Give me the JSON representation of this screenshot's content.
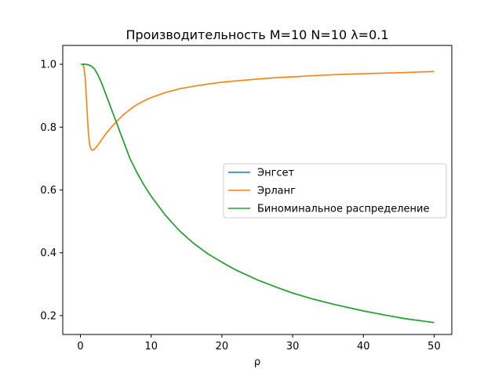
{
  "chart_data": {
    "type": "line",
    "title": "Производительность M=10 N=10 λ=0.1",
    "xlabel": "ρ",
    "ylabel": "",
    "xlim": [
      -2.5,
      52.5
    ],
    "ylim": [
      0.14,
      1.06
    ],
    "xticks": [
      0,
      10,
      20,
      30,
      40,
      50
    ],
    "yticks": [
      0.2,
      0.4,
      0.6,
      0.8,
      1.0
    ],
    "xtick_labels": [
      "0",
      "10",
      "20",
      "30",
      "40",
      "50"
    ],
    "ytick_labels": [
      "0.2",
      "0.4",
      "0.6",
      "0.8",
      "1.0"
    ],
    "grid": false,
    "legend_position": "center-right",
    "series": [
      {
        "name": "Энгсет",
        "color": "#1f77b4",
        "x": [
          0.1,
          0.5,
          1,
          1.5,
          2,
          2.5,
          3,
          3.5,
          4,
          4.5,
          5,
          6,
          7,
          8,
          9,
          10,
          12,
          14,
          16,
          18,
          20,
          22,
          25,
          28,
          30,
          33,
          36,
          40,
          43,
          46,
          50
        ],
        "y": [
          1.0,
          1.0,
          0.999,
          0.995,
          0.985,
          0.965,
          0.94,
          0.91,
          0.88,
          0.85,
          0.82,
          0.76,
          0.7,
          0.655,
          0.615,
          0.58,
          0.52,
          0.47,
          0.43,
          0.397,
          0.37,
          0.345,
          0.314,
          0.288,
          0.272,
          0.252,
          0.235,
          0.215,
          0.202,
          0.19,
          0.178
        ]
      },
      {
        "name": "Эрланг",
        "color": "#ff7f0e",
        "x": [
          0.1,
          0.3,
          0.5,
          0.7,
          0.9,
          1.1,
          1.3,
          1.5,
          1.7,
          1.9,
          2.2,
          2.6,
          3,
          3.5,
          4,
          4.5,
          5,
          6,
          7,
          8,
          9,
          10,
          12,
          14,
          16,
          18,
          20,
          22,
          25,
          28,
          30,
          33,
          36,
          40,
          43,
          46,
          50
        ],
        "y": [
          1.0,
          1.0,
          0.99,
          0.95,
          0.87,
          0.79,
          0.745,
          0.73,
          0.726,
          0.728,
          0.735,
          0.747,
          0.76,
          0.776,
          0.79,
          0.803,
          0.815,
          0.838,
          0.856,
          0.872,
          0.884,
          0.894,
          0.91,
          0.922,
          0.93,
          0.937,
          0.943,
          0.947,
          0.953,
          0.958,
          0.96,
          0.964,
          0.967,
          0.97,
          0.972,
          0.974,
          0.977
        ]
      },
      {
        "name": "Биноминальное распределение",
        "color": "#2ca02c",
        "x": [
          0.1,
          0.5,
          1,
          1.5,
          2,
          2.5,
          3,
          3.5,
          4,
          4.5,
          5,
          6,
          7,
          8,
          9,
          10,
          12,
          14,
          16,
          18,
          20,
          22,
          25,
          28,
          30,
          33,
          36,
          40,
          43,
          46,
          50
        ],
        "y": [
          1.0,
          1.0,
          0.999,
          0.995,
          0.985,
          0.965,
          0.94,
          0.91,
          0.88,
          0.85,
          0.82,
          0.76,
          0.7,
          0.655,
          0.615,
          0.58,
          0.52,
          0.47,
          0.43,
          0.397,
          0.37,
          0.345,
          0.314,
          0.288,
          0.272,
          0.252,
          0.235,
          0.215,
          0.202,
          0.19,
          0.178
        ]
      }
    ]
  }
}
